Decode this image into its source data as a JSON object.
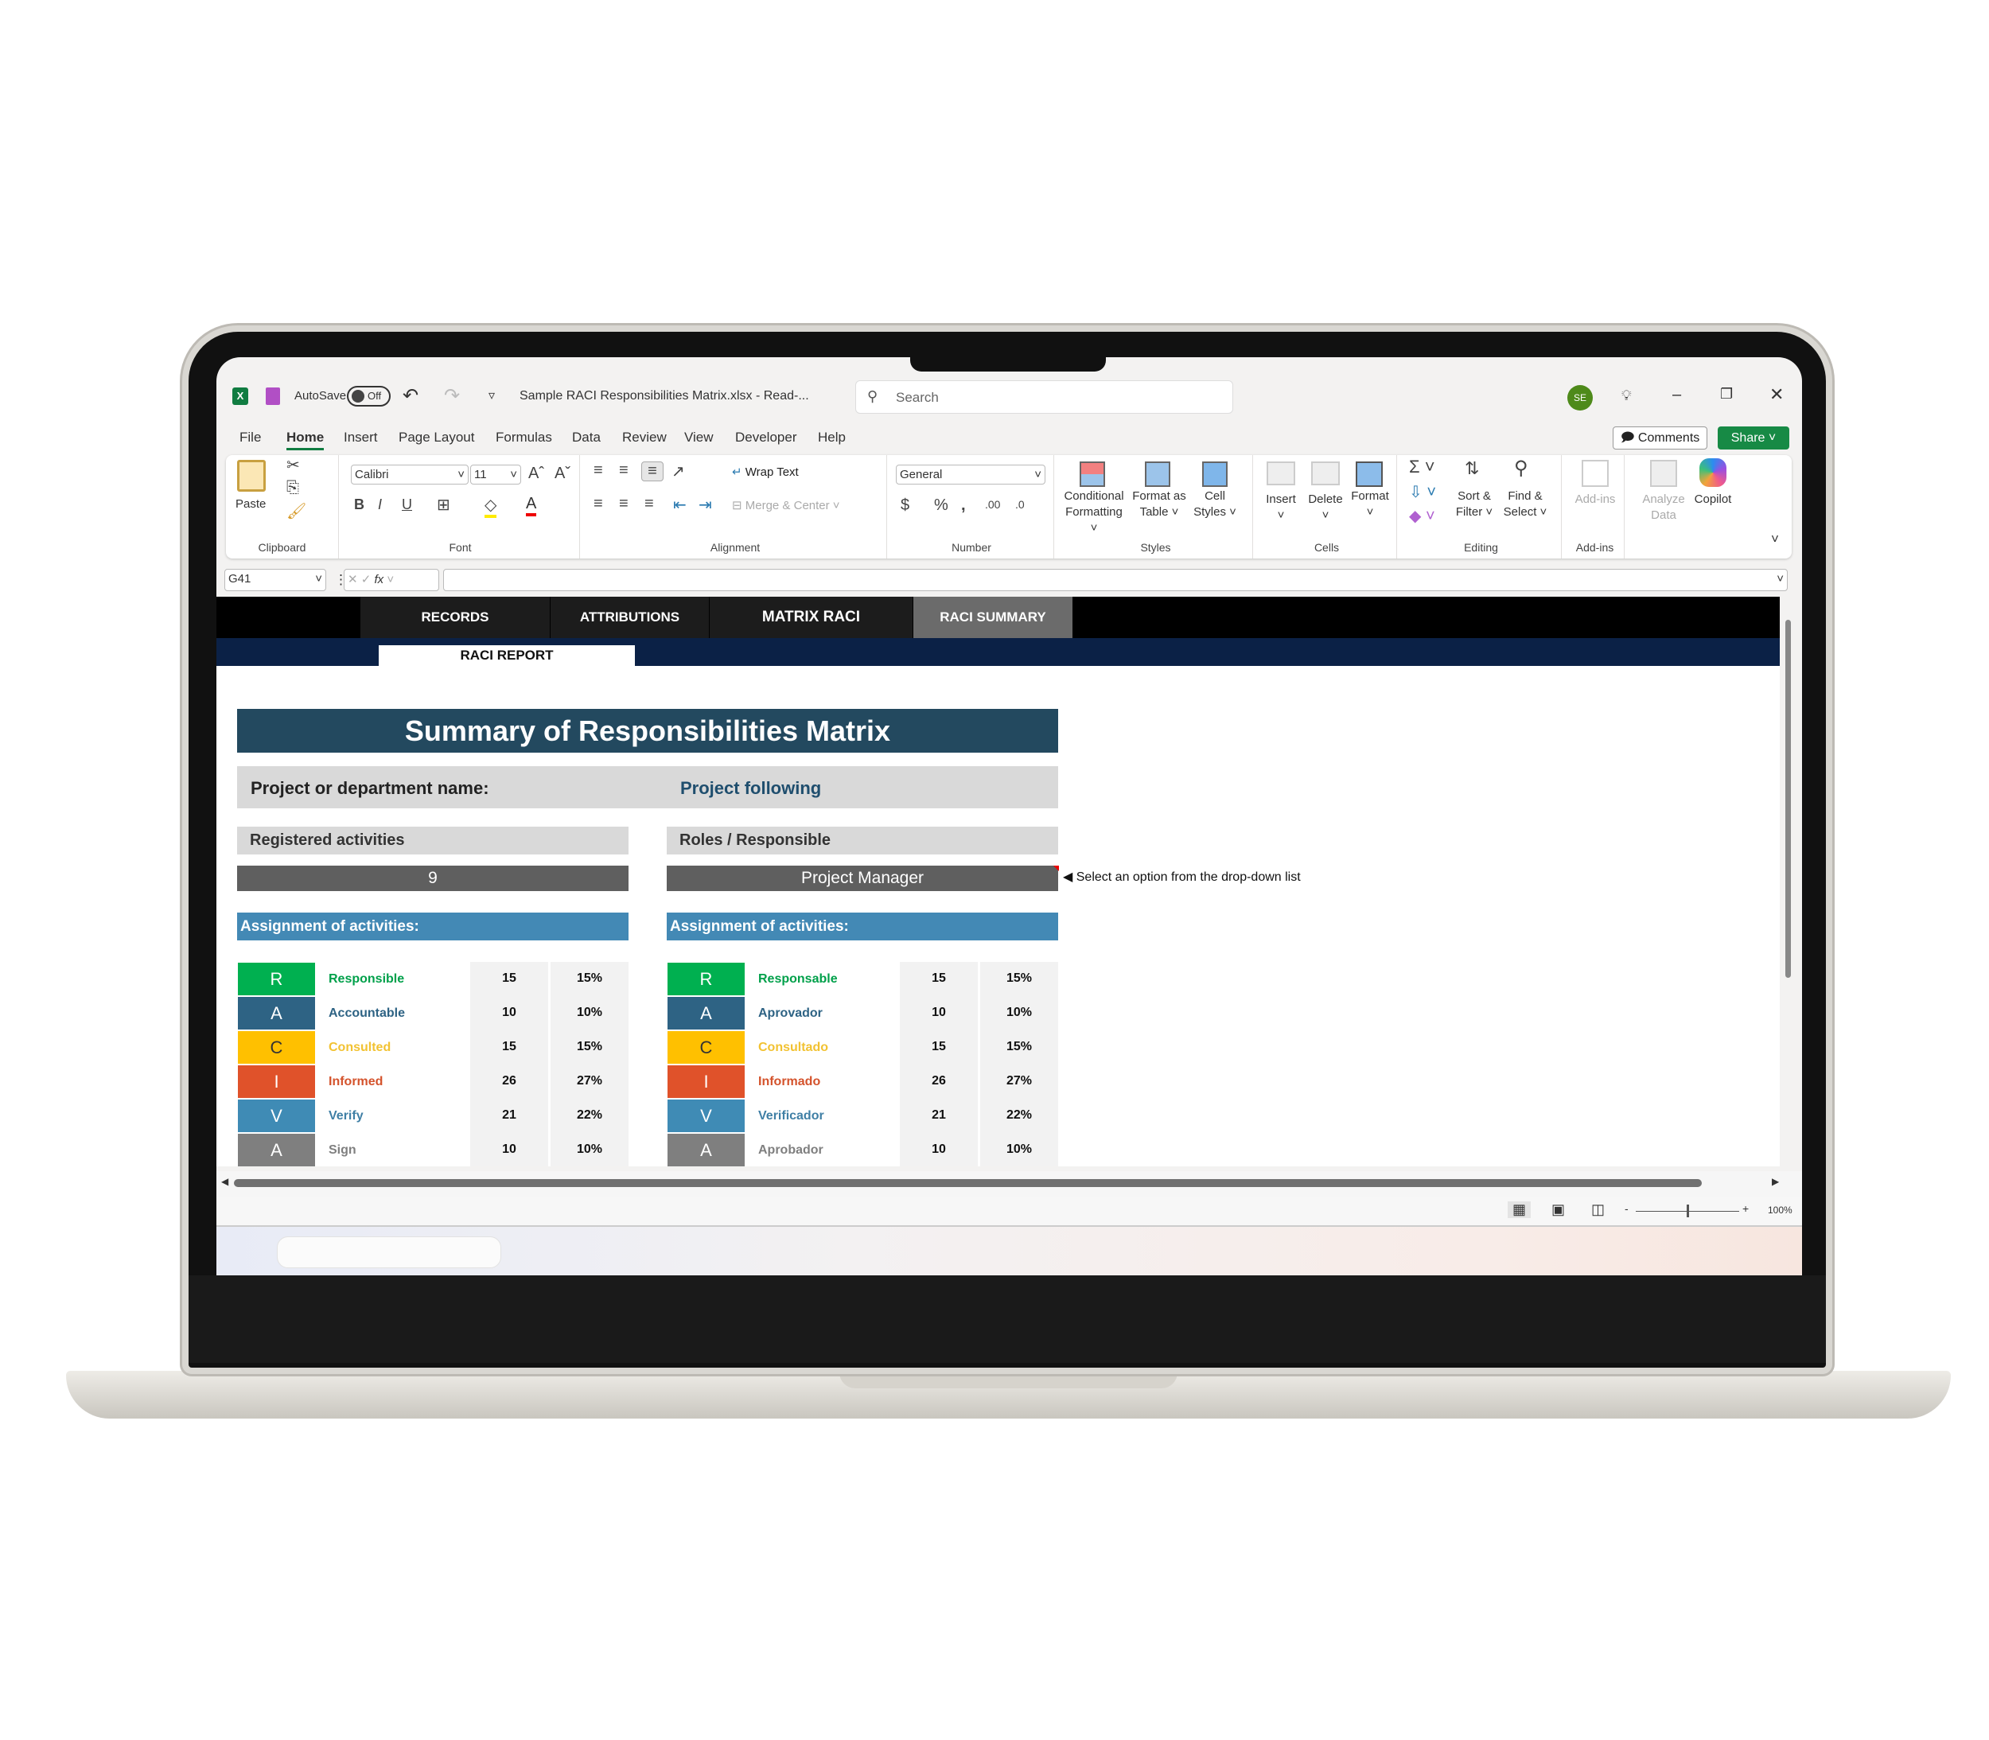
{
  "titlebar": {
    "autosave_label": "AutoSave",
    "autosave_state": "Off",
    "file_title": "Sample RACI Responsibilities Matrix.xlsx  -  Read-...",
    "search_placeholder": "Search",
    "avatar_initials": "SE"
  },
  "menu": {
    "tabs": [
      "File",
      "Home",
      "Insert",
      "Page Layout",
      "Formulas",
      "Data",
      "Review",
      "View",
      "Developer",
      "Help"
    ],
    "active": "Home",
    "comments": "Comments",
    "share": "Share"
  },
  "ribbon": {
    "clipboard": {
      "label": "Clipboard",
      "paste": "Paste"
    },
    "font": {
      "label": "Font",
      "font_name": "Calibri",
      "font_size": "11"
    },
    "alignment": {
      "label": "Alignment",
      "wrap": "Wrap Text",
      "merge": "Merge & Center"
    },
    "number": {
      "label": "Number",
      "format": "General"
    },
    "styles": {
      "label": "Styles",
      "cond1": "Conditional",
      "cond2": "Formatting",
      "fmt1": "Format as",
      "fmt2": "Table",
      "cell1": "Cell",
      "cell2": "Styles"
    },
    "cells": {
      "label": "Cells",
      "insert": "Insert",
      "delete": "Delete",
      "format": "Format"
    },
    "editing": {
      "label": "Editing",
      "sort1": "Sort &",
      "sort2": "Filter",
      "find1": "Find &",
      "find2": "Select"
    },
    "addins": {
      "label": "Add-ins",
      "addins": "Add-ins",
      "analyze1": "Analyze",
      "analyze2": "Data",
      "copilot": "Copilot"
    }
  },
  "formula_bar": {
    "name_box": "G41",
    "fx": "fx",
    "value": ""
  },
  "sheet_nav": {
    "tabs": [
      "RECORDS",
      "ATTRIBUTIONS",
      "MATRIX RACI",
      "RACI SUMMARY"
    ],
    "active": "RACI SUMMARY",
    "subtab": "RACI REPORT"
  },
  "report": {
    "title": "Summary of Responsibilities Matrix",
    "project_label": "Project or department name:",
    "project_value": "Project following",
    "registered_label": "Registered activities",
    "registered_value": "9",
    "roles_label": "Roles / Responsible",
    "roles_value": "Project Manager",
    "dropdown_hint": "Select an option from the drop-down list",
    "assignment_left": "Assignment of activities:",
    "assignment_right": "Assignment of activities:",
    "left_rows": [
      {
        "letter": "R",
        "label": "Responsible",
        "count": "15",
        "pct": "15%",
        "color": "#00b050",
        "text_color": "#00a04a"
      },
      {
        "letter": "A",
        "label": "Accountable",
        "count": "10",
        "pct": "10%",
        "color": "#2e6384",
        "text_color": "#2e6384"
      },
      {
        "letter": "C",
        "label": "Consulted",
        "count": "15",
        "pct": "15%",
        "color": "#ffc000",
        "text_color": "#f2c232"
      },
      {
        "letter": "I",
        "label": "Informed",
        "count": "26",
        "pct": "27%",
        "color": "#e0522a",
        "text_color": "#d4532c"
      },
      {
        "letter": "V",
        "label": "Verify",
        "count": "21",
        "pct": "22%",
        "color": "#3f8bb5",
        "text_color": "#3f7fa5"
      },
      {
        "letter": "A",
        "label": "Sign",
        "count": "10",
        "pct": "10%",
        "color": "#7f7f7f",
        "text_color": "#7f7f7f"
      }
    ],
    "right_rows": [
      {
        "letter": "R",
        "label": "Responsable",
        "count": "15",
        "pct": "15%",
        "color": "#00b050",
        "text_color": "#00a04a"
      },
      {
        "letter": "A",
        "label": "Aprovador",
        "count": "10",
        "pct": "10%",
        "color": "#2e6384",
        "text_color": "#2e6384"
      },
      {
        "letter": "C",
        "label": "Consultado",
        "count": "15",
        "pct": "15%",
        "color": "#ffc000",
        "text_color": "#f2c232"
      },
      {
        "letter": "I",
        "label": "Informado",
        "count": "26",
        "pct": "27%",
        "color": "#e0522a",
        "text_color": "#d4532c"
      },
      {
        "letter": "V",
        "label": "Verificador",
        "count": "21",
        "pct": "22%",
        "color": "#3f8bb5",
        "text_color": "#3f7fa5"
      },
      {
        "letter": "A",
        "label": "Aprobador",
        "count": "10",
        "pct": "10%",
        "color": "#7f7f7f",
        "text_color": "#7f7f7f"
      }
    ]
  },
  "status": {
    "zoom": "100%"
  },
  "colors": {
    "excel_green": "#107c41",
    "title_banner": "#23495f",
    "assignment_bar": "#4389b5",
    "value_bar": "#5f5f5f",
    "navy_band": "#0b2146"
  }
}
